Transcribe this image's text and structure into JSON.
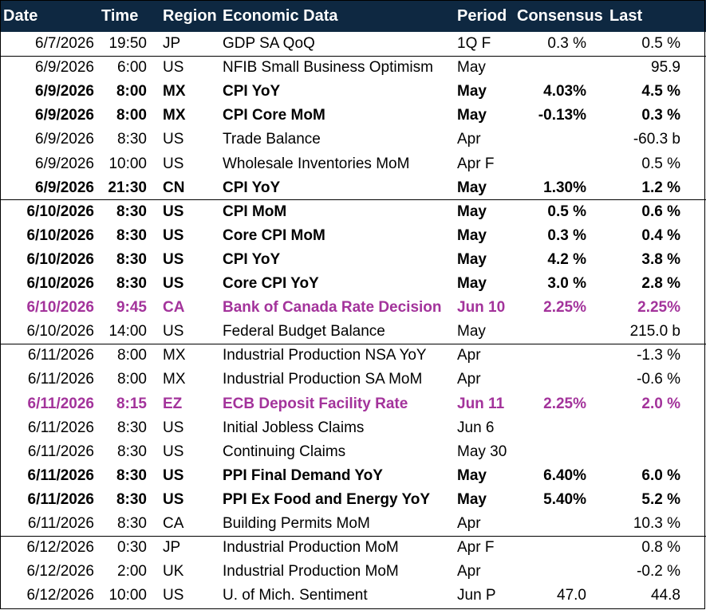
{
  "header": {
    "date": "Date",
    "time": "Time",
    "region": "Region",
    "data": "Economic Data",
    "period": "Period",
    "consensus": "Consensus",
    "last": "Last"
  },
  "styles": {
    "bold": {
      "weight": "bold",
      "color": "#000000"
    },
    "highlight": {
      "weight": "bold",
      "color": "#a3339b"
    }
  },
  "groups": [
    {
      "rows": [
        {
          "date": "6/7/2026",
          "time": "19:50",
          "region": "JP",
          "data": "GDP SA QoQ",
          "period": "1Q F",
          "consensus": "0.3 %",
          "last": "0.5 %"
        }
      ]
    },
    {
      "rows": [
        {
          "date": "6/9/2026",
          "time": "6:00",
          "region": "US",
          "data": "NFIB Small Business Optimism",
          "period": "May",
          "last": "95.9"
        },
        {
          "date": "6/9/2026",
          "time": "8:00",
          "region": "MX",
          "data": "CPI YoY",
          "period": "May",
          "consensus": "4.03%",
          "last": "4.5 %",
          "style": "bold"
        },
        {
          "date": "6/9/2026",
          "time": "8:00",
          "region": "MX",
          "data": "CPI Core MoM",
          "period": "May",
          "consensus": "-0.13%",
          "last": "0.3 %",
          "style": "bold"
        },
        {
          "date": "6/9/2026",
          "time": "8:30",
          "region": "US",
          "data": "Trade Balance",
          "period": "Apr",
          "last": "-60.3 b"
        },
        {
          "date": "6/9/2026",
          "time": "10:00",
          "region": "US",
          "data": "Wholesale Inventories MoM",
          "period": "Apr F",
          "last": "0.5 %"
        },
        {
          "date": "6/9/2026",
          "time": "21:30",
          "region": "CN",
          "data": "CPI YoY",
          "period": "May",
          "consensus": "1.30%",
          "last": "1.2 %",
          "style": "bold"
        }
      ]
    },
    {
      "rows": [
        {
          "date": "6/10/2026",
          "time": "8:30",
          "region": "US",
          "data": "CPI MoM",
          "period": "May",
          "consensus": "0.5 %",
          "last": "0.6 %",
          "style": "bold"
        },
        {
          "date": "6/10/2026",
          "time": "8:30",
          "region": "US",
          "data": "Core CPI MoM",
          "period": "May",
          "consensus": "0.3 %",
          "last": "0.4 %",
          "style": "bold"
        },
        {
          "date": "6/10/2026",
          "time": "8:30",
          "region": "US",
          "data": "CPI YoY",
          "period": "May",
          "consensus": "4.2 %",
          "last": "3.8 %",
          "style": "bold"
        },
        {
          "date": "6/10/2026",
          "time": "8:30",
          "region": "US",
          "data": "Core CPI YoY",
          "period": "May",
          "consensus": "3.0 %",
          "last": "2.8 %",
          "style": "bold"
        },
        {
          "date": "6/10/2026",
          "time": "9:45",
          "region": "CA",
          "data": "Bank of Canada Rate Decision",
          "period": "Jun 10",
          "consensus": "2.25%",
          "last": "2.25%",
          "style": "highlight"
        },
        {
          "date": "6/10/2026",
          "time": "14:00",
          "region": "US",
          "data": "Federal Budget Balance",
          "period": "May",
          "last": "215.0 b"
        }
      ]
    },
    {
      "rows": [
        {
          "date": "6/11/2026",
          "time": "8:00",
          "region": "MX",
          "data": "Industrial Production NSA YoY",
          "period": "Apr",
          "last": "-1.3 %"
        },
        {
          "date": "6/11/2026",
          "time": "8:00",
          "region": "MX",
          "data": "Industrial Production SA MoM",
          "period": "Apr",
          "last": "-0.6 %"
        },
        {
          "date": "6/11/2026",
          "time": "8:15",
          "region": "EZ",
          "data": "ECB Deposit Facility Rate",
          "period": "Jun 11",
          "consensus": "2.25%",
          "last": "2.0 %",
          "style": "highlight"
        },
        {
          "date": "6/11/2026",
          "time": "8:30",
          "region": "US",
          "data": "Initial Jobless Claims",
          "period": "Jun 6"
        },
        {
          "date": "6/11/2026",
          "time": "8:30",
          "region": "US",
          "data": "Continuing Claims",
          "period": "May 30"
        },
        {
          "date": "6/11/2026",
          "time": "8:30",
          "region": "US",
          "data": "PPI Final Demand YoY",
          "period": "May",
          "consensus": "6.40%",
          "last": "6.0 %",
          "style": "bold"
        },
        {
          "date": "6/11/2026",
          "time": "8:30",
          "region": "US",
          "data": "PPI Ex Food and Energy YoY",
          "period": "May",
          "consensus": "5.40%",
          "last": "5.2 %",
          "style": "bold"
        },
        {
          "date": "6/11/2026",
          "time": "8:30",
          "region": "CA",
          "data": "Building Permits MoM",
          "period": "Apr",
          "last": "10.3 %"
        }
      ]
    },
    {
      "rows": [
        {
          "date": "6/12/2026",
          "time": "0:30",
          "region": "JP",
          "data": "Industrial Production MoM",
          "period": "Apr F",
          "last": "0.8 %"
        },
        {
          "date": "6/12/2026",
          "time": "2:00",
          "region": "UK",
          "data": "Industrial Production MoM",
          "period": "Apr",
          "last": "-0.2 %"
        },
        {
          "date": "6/12/2026",
          "time": "10:00",
          "region": "US",
          "data": "U. of Mich. Sentiment",
          "period": "Jun P",
          "consensus": "47.0",
          "last": "44.8"
        }
      ]
    }
  ]
}
